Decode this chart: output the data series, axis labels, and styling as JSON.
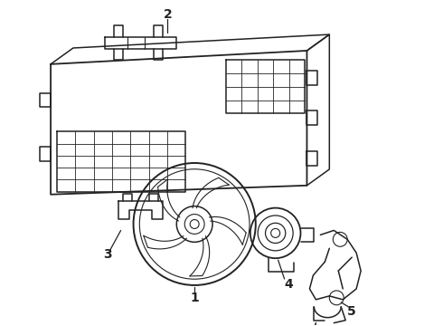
{
  "bg_color": "#ffffff",
  "line_color": "#222222",
  "lw": 1.1,
  "label_fontsize": 10,
  "fig_w": 4.9,
  "fig_h": 3.6,
  "dpi": 100
}
